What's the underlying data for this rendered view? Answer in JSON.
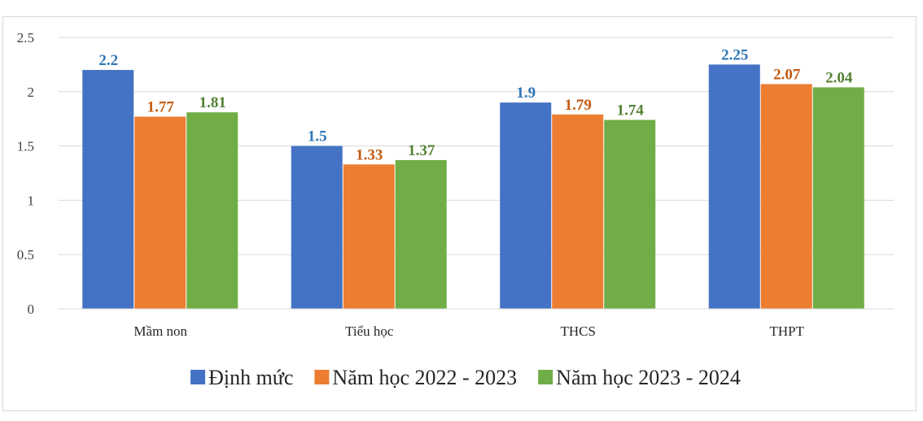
{
  "chart_data": {
    "type": "bar",
    "title": "",
    "xlabel": "",
    "ylabel": "",
    "ylim": [
      0,
      2.5
    ],
    "yticks": [
      "0",
      "0.5",
      "1",
      "1.5",
      "2",
      "2.5"
    ],
    "grid": true,
    "legend_position": "bottom",
    "categories": [
      "Mầm non",
      "Tiểu học",
      "THCS",
      "THPT"
    ],
    "series": [
      {
        "name": "Định mức",
        "color": "#4472C4",
        "values": [
          2.2,
          1.5,
          1.9,
          2.25
        ],
        "labels": [
          "2.2",
          "1.5",
          "1.9",
          "2.25"
        ]
      },
      {
        "name": "Năm học 2022 - 2023",
        "color": "#ED7D31",
        "values": [
          1.77,
          1.33,
          1.79,
          2.07
        ],
        "labels": [
          "1.77",
          "1.33",
          "1.79",
          "2.07"
        ]
      },
      {
        "name": "Năm học 2023 - 2024",
        "color": "#70AD47",
        "values": [
          1.81,
          1.37,
          1.74,
          2.04
        ],
        "labels": [
          "1.81",
          "1.37",
          "1.74",
          "2.04"
        ]
      }
    ],
    "label_colors": [
      "#2E75B6",
      "#C55A11",
      "#548235"
    ]
  }
}
